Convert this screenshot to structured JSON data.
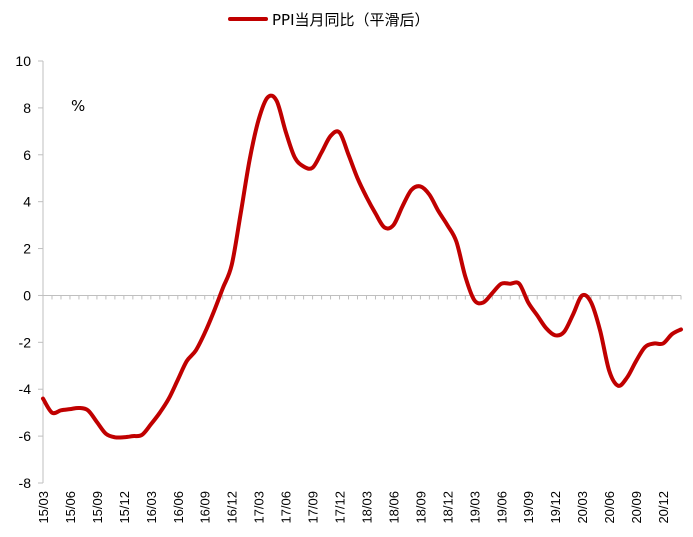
{
  "chart_data": {
    "type": "line",
    "title": "",
    "unit_label": "%",
    "legend_position": "top-center",
    "grid": false,
    "ylim": [
      -8,
      10
    ],
    "yticks": [
      10,
      8,
      6,
      4,
      2,
      0,
      -2,
      -4,
      -6,
      -8
    ],
    "xticks": [
      "15/03",
      "15/06",
      "15/09",
      "15/12",
      "16/03",
      "16/06",
      "16/09",
      "16/12",
      "17/03",
      "17/06",
      "17/09",
      "17/12",
      "18/03",
      "18/06",
      "18/09",
      "18/12",
      "19/03",
      "19/06",
      "19/09",
      "19/12",
      "20/03",
      "20/06",
      "20/09",
      "20/12"
    ],
    "series": [
      {
        "name": "PPI当月同比（平滑后）",
        "color": "#c00000",
        "points": [
          [
            "15/03",
            -4.4
          ],
          [
            "15/04",
            -5.0
          ],
          [
            "15/05",
            -4.9
          ],
          [
            "15/06",
            -4.85
          ],
          [
            "15/07",
            -4.8
          ],
          [
            "15/08",
            -4.9
          ],
          [
            "15/09",
            -5.4
          ],
          [
            "15/10",
            -5.9
          ],
          [
            "15/11",
            -6.05
          ],
          [
            "15/12",
            -6.05
          ],
          [
            "16/01",
            -6.0
          ],
          [
            "16/02",
            -5.95
          ],
          [
            "16/03",
            -5.5
          ],
          [
            "16/04",
            -5.0
          ],
          [
            "16/05",
            -4.4
          ],
          [
            "16/06",
            -3.6
          ],
          [
            "16/07",
            -2.8
          ],
          [
            "16/08",
            -2.35
          ],
          [
            "16/09",
            -1.6
          ],
          [
            "16/10",
            -0.7
          ],
          [
            "16/11",
            0.3
          ],
          [
            "16/12",
            1.3
          ],
          [
            "17/01",
            3.5
          ],
          [
            "17/02",
            5.8
          ],
          [
            "17/03",
            7.5
          ],
          [
            "17/04",
            8.45
          ],
          [
            "17/05",
            8.3
          ],
          [
            "17/06",
            7.0
          ],
          [
            "17/07",
            5.9
          ],
          [
            "17/08",
            5.5
          ],
          [
            "17/09",
            5.45
          ],
          [
            "17/10",
            6.1
          ],
          [
            "17/11",
            6.8
          ],
          [
            "17/12",
            6.95
          ],
          [
            "18/01",
            6.0
          ],
          [
            "18/02",
            5.0
          ],
          [
            "18/03",
            4.2
          ],
          [
            "18/04",
            3.5
          ],
          [
            "18/05",
            2.9
          ],
          [
            "18/06",
            3.0
          ],
          [
            "18/07",
            3.8
          ],
          [
            "18/08",
            4.5
          ],
          [
            "18/09",
            4.65
          ],
          [
            "18/10",
            4.3
          ],
          [
            "18/11",
            3.6
          ],
          [
            "18/12",
            3.0
          ],
          [
            "19/01",
            2.3
          ],
          [
            "19/02",
            0.8
          ],
          [
            "19/03",
            -0.2
          ],
          [
            "19/04",
            -0.3
          ],
          [
            "19/05",
            0.1
          ],
          [
            "19/06",
            0.5
          ],
          [
            "19/07",
            0.5
          ],
          [
            "19/08",
            0.5
          ],
          [
            "19/09",
            -0.3
          ],
          [
            "19/10",
            -0.85
          ],
          [
            "19/11",
            -1.4
          ],
          [
            "19/12",
            -1.7
          ],
          [
            "20/01",
            -1.55
          ],
          [
            "20/02",
            -0.8
          ],
          [
            "20/03",
            0.0
          ],
          [
            "20/04",
            -0.3
          ],
          [
            "20/05",
            -1.5
          ],
          [
            "20/06",
            -3.2
          ],
          [
            "20/07",
            -3.85
          ],
          [
            "20/08",
            -3.5
          ],
          [
            "20/09",
            -2.8
          ],
          [
            "20/10",
            -2.2
          ],
          [
            "20/11",
            -2.05
          ],
          [
            "20/12",
            -2.05
          ],
          [
            "21/01",
            -1.65
          ],
          [
            "21/02",
            -1.45
          ]
        ]
      }
    ]
  }
}
